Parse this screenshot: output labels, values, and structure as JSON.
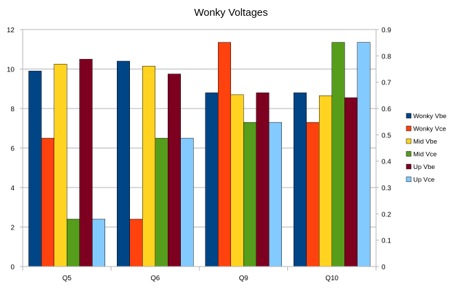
{
  "chart_data": {
    "type": "bar",
    "title": "Wonky Voltages",
    "categories": [
      "Q5",
      "Q6",
      "Q9",
      "Q10"
    ],
    "y_left": {
      "min": 0,
      "max": 12,
      "step": 2,
      "ticks": [
        "0",
        "2",
        "4",
        "6",
        "8",
        "10",
        "12"
      ]
    },
    "y_right": {
      "min": 0,
      "max": 0.9,
      "step": 0.1,
      "ticks": [
        "0",
        "0.1",
        "0.2",
        "0.3",
        "0.4",
        "0.5",
        "0.6",
        "0.7",
        "0.8",
        "0.9"
      ]
    },
    "grid": true,
    "legend_position": "right",
    "series": [
      {
        "name": "Wonky Vbe",
        "color": "#004586",
        "values": [
          9.9,
          10.4,
          8.8,
          8.8
        ]
      },
      {
        "name": "Wonky Vce",
        "color": "#ff420e",
        "values": [
          6.5,
          2.4,
          11.35,
          7.3
        ]
      },
      {
        "name": "Mid Vbe",
        "color": "#ffd320",
        "values": [
          10.25,
          10.15,
          8.7,
          8.65
        ]
      },
      {
        "name": "Mid Vce",
        "color": "#579d1c",
        "values": [
          2.4,
          6.5,
          7.3,
          11.35
        ]
      },
      {
        "name": "Up Vbe",
        "color": "#7e0021",
        "values": [
          10.5,
          9.75,
          8.8,
          8.55
        ]
      },
      {
        "name": "Up Vce",
        "color": "#83caff",
        "values": [
          2.4,
          6.5,
          7.3,
          11.35
        ]
      }
    ]
  }
}
